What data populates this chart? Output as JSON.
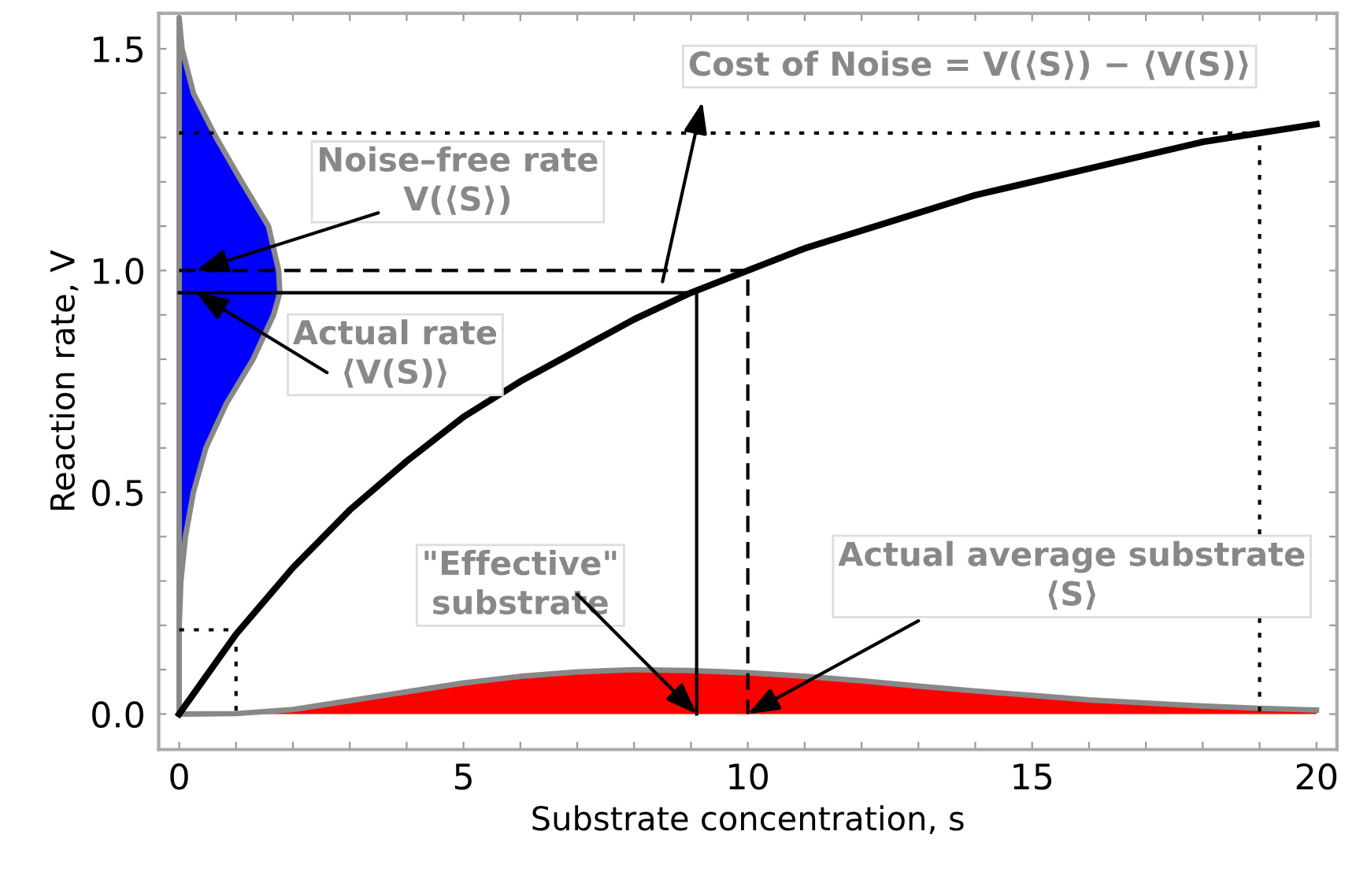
{
  "chart_data": {
    "type": "line",
    "xlabel": "Substrate concentration, s",
    "ylabel": "Reaction rate, V",
    "xlim": [
      -0.36,
      20.36
    ],
    "ylim": [
      -0.08,
      1.58
    ],
    "xticks": [
      0,
      {
        "value": 1,
        "label": null
      },
      {
        "value": 2,
        "label": null
      },
      {
        "value": 3,
        "label": null
      },
      {
        "value": 4,
        "label": null
      },
      5,
      {
        "value": 6,
        "label": null
      },
      {
        "value": 7,
        "label": null
      },
      {
        "value": 8,
        "label": null
      },
      {
        "value": 9,
        "label": null
      },
      10,
      {
        "value": 11,
        "label": null
      },
      {
        "value": 12,
        "label": null
      },
      {
        "value": 13,
        "label": null
      },
      {
        "value": 14,
        "label": null
      },
      15,
      {
        "value": 16,
        "label": null
      },
      {
        "value": 17,
        "label": null
      },
      {
        "value": 18,
        "label": null
      },
      {
        "value": 19,
        "label": null
      },
      20
    ],
    "yticks": [
      {
        "value": 0,
        "label": "0.0"
      },
      {
        "value": 0.1,
        "label": null
      },
      {
        "value": 0.2,
        "label": null
      },
      {
        "value": 0.3,
        "label": null
      },
      {
        "value": 0.4,
        "label": null
      },
      {
        "value": 0.5,
        "label": "0.5"
      },
      {
        "value": 0.6,
        "label": null
      },
      {
        "value": 0.7,
        "label": null
      },
      {
        "value": 0.8,
        "label": null
      },
      {
        "value": 0.9,
        "label": null
      },
      {
        "value": 1.0,
        "label": "1.0"
      },
      {
        "value": 1.1,
        "label": null
      },
      {
        "value": 1.2,
        "label": null
      },
      {
        "value": 1.3,
        "label": null
      },
      {
        "value": 1.4,
        "label": null
      },
      {
        "value": 1.5,
        "label": "1.5"
      }
    ],
    "grid": false,
    "legend": false,
    "marker": "none",
    "series": [
      {
        "type": "area",
        "color": "#ff0000",
        "x": [
          0,
          1,
          2,
          3,
          4,
          5,
          6,
          7,
          8,
          9,
          10,
          11,
          12,
          13,
          14,
          15,
          16,
          17,
          18,
          19,
          20
        ],
        "values": [
          0,
          0.001,
          0.01,
          0.03,
          0.05,
          0.07,
          0.085,
          0.095,
          0.1,
          0.098,
          0.093,
          0.085,
          0.075,
          0.063,
          0.052,
          0.042,
          0.032,
          0.025,
          0.018,
          0.013,
          0.009
        ]
      },
      {
        "color": "#000000",
        "line_style": "dotted",
        "x": [
          0,
          19,
          19
        ],
        "values": [
          1.31,
          1.31,
          0
        ]
      },
      {
        "color": "#000000",
        "line_style": "dashed",
        "x": [
          0,
          10,
          10
        ],
        "values": [
          1.0,
          1.0,
          0
        ]
      },
      {
        "color": "#000000",
        "line_style": "solid",
        "x": [
          0,
          9.1,
          9.1
        ],
        "values": [
          0.95,
          0.95,
          0
        ]
      },
      {
        "color": "#000000",
        "line_style": "dotted",
        "x": [
          0,
          1,
          1
        ],
        "values": [
          0.19,
          0.19,
          0
        ]
      },
      {
        "color": "#000000",
        "line_style": "solid",
        "x": [
          0,
          1,
          2,
          3,
          4,
          5,
          6,
          7,
          8,
          9,
          10,
          11,
          12,
          13,
          14,
          15,
          16,
          17,
          18,
          19,
          20
        ],
        "values": [
          0,
          0.18,
          0.33,
          0.46,
          0.57,
          0.67,
          0.75,
          0.82,
          0.89,
          0.95,
          1.0,
          1.05,
          1.09,
          1.13,
          1.17,
          1.2,
          1.23,
          1.26,
          1.29,
          1.31,
          1.33
        ]
      }
    ],
    "annotations": [
      "Cost of Noise = V(⟨S⟩) − ⟨V(S)⟩",
      {
        "text": "Noise–free rate\nV(⟨S⟩)",
        "x": 0.3,
        "y": 1.0
      },
      {
        "text": "Actual rate\n⟨V(S)⟩",
        "x": 0.3,
        "y": 0.95
      },
      {
        "text": "\"Effective\"\nsubstrate",
        "x": 9.1,
        "y": 0.0
      },
      {
        "text": "Actual average substrate\n⟨S⟩",
        "x": 10.0,
        "y": 0.0
      }
    ]
  }
}
